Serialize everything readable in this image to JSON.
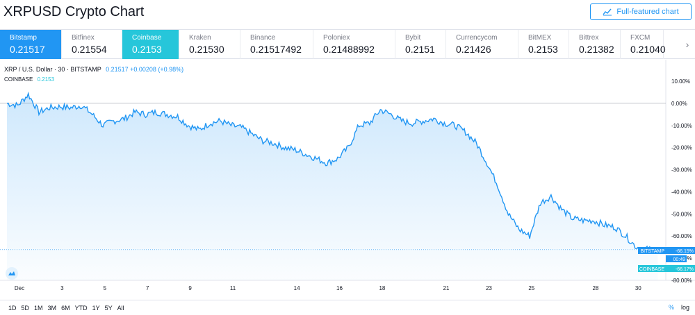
{
  "page": {
    "title": "XRPUSD Crypto Chart"
  },
  "full_chart_button": {
    "label": "Full-featured chart",
    "icon": "chart-line-icon",
    "color": "#2196f3"
  },
  "tabs": [
    {
      "exchange": "Bitstamp",
      "price": "0.21517",
      "state": "active-blue"
    },
    {
      "exchange": "Bitfinex",
      "price": "0.21554",
      "state": ""
    },
    {
      "exchange": "Coinbase",
      "price": "0.2153",
      "state": "active-teal"
    },
    {
      "exchange": "Kraken",
      "price": "0.21530",
      "state": ""
    },
    {
      "exchange": "Binance",
      "price": "0.21517492",
      "state": ""
    },
    {
      "exchange": "Poloniex",
      "price": "0.21488992",
      "state": ""
    },
    {
      "exchange": "Bybit",
      "price": "0.2151",
      "state": ""
    },
    {
      "exchange": "Currencycom",
      "price": "0.21426",
      "state": ""
    },
    {
      "exchange": "BitMEX",
      "price": "0.2153",
      "state": ""
    },
    {
      "exchange": "Bittrex",
      "price": "0.21382",
      "state": ""
    },
    {
      "exchange": "FXCM",
      "price": "0.21040",
      "state": ""
    }
  ],
  "tabs_next_icon": "chevron-right-icon",
  "legend": {
    "symbol": "XRP / U.S. Dollar · 30 · BITSTAMP",
    "value": "0.21517 +0.00208 (+0.98%)",
    "compare_symbol": "COINBASE",
    "compare_value": "0.2153"
  },
  "colors": {
    "bitstamp": "#2196f3",
    "coinbase": "#26c6da",
    "grid": "#f0f3fa"
  },
  "chart_data": {
    "type": "area",
    "y_ticks": [
      "10.00%",
      "0.00%",
      "-10.00%",
      "-20.00%",
      "-30.00%",
      "-40.00%",
      "-50.00%",
      "-60.00%",
      "-70.00%",
      "-80.00%"
    ],
    "x_ticks": [
      "Dec",
      "3",
      "5",
      "7",
      "9",
      "11",
      "14",
      "16",
      "18",
      "21",
      "23",
      "25",
      "28",
      "30"
    ],
    "ylim": [
      -80,
      10
    ],
    "series": [
      {
        "name": "BITSTAMP",
        "x_day": [
          0,
          0.5,
          1,
          1.5,
          2,
          2.5,
          3,
          3.5,
          4,
          4.5,
          5,
          5.5,
          6,
          6.5,
          7,
          7.5,
          8,
          8.5,
          9,
          9.5,
          10,
          10.5,
          11,
          11.5,
          12,
          12.5,
          13,
          13.5,
          14,
          14.5,
          15,
          15.5,
          16,
          16.5,
          17,
          17.5,
          18,
          18.5,
          19,
          19.5,
          20,
          20.5,
          21,
          21.5,
          22,
          22.5,
          23,
          23.5,
          24,
          24.5,
          25,
          25.5,
          26,
          26.5,
          27,
          27.5,
          28,
          28.5,
          29,
          29.5,
          30,
          30.5
        ],
        "values": [
          0,
          -1,
          4,
          -4,
          -2,
          -1.5,
          -2,
          -1,
          -5,
          -10,
          -8,
          -7,
          -4,
          -5,
          -4,
          -5,
          -6,
          -10,
          -12,
          -9,
          -8,
          -10,
          -11,
          -14,
          -17,
          -18,
          -20,
          -21,
          -23,
          -25,
          -27,
          -25,
          -20,
          -10,
          -9,
          -3,
          -5,
          -8,
          -9,
          -8,
          -7,
          -9,
          -10,
          -13,
          -18,
          -27,
          -37,
          -50,
          -57,
          -60,
          -45,
          -42,
          -48,
          -52,
          -53,
          -53,
          -55,
          -56,
          -60,
          -65,
          -66,
          -66.15
        ],
        "last_label": "BITSTAMP",
        "last_value": "-66.15%"
      },
      {
        "name": "COINBASE",
        "last_label": "COINBASE",
        "last_value": "-66.17%"
      }
    ],
    "countdown": "00:49"
  },
  "ranges": [
    "1D",
    "5D",
    "1M",
    "3M",
    "6M",
    "YTD",
    "1Y",
    "5Y",
    "All"
  ],
  "scale_buttons": {
    "percent": "%",
    "log": "log"
  }
}
